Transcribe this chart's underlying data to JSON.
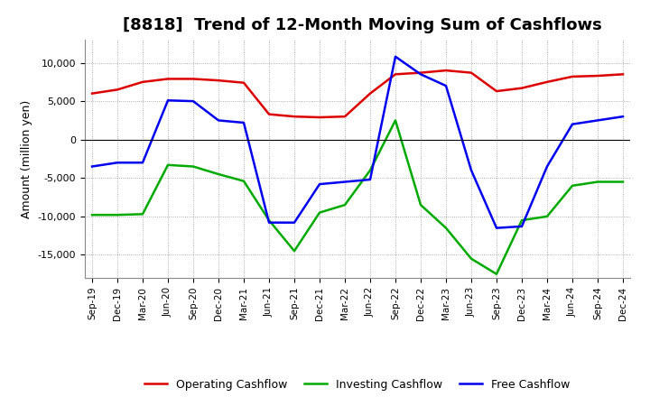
{
  "title": "[8818]  Trend of 12-Month Moving Sum of Cashflows",
  "ylabel": "Amount (million yen)",
  "x_labels": [
    "Sep-19",
    "Dec-19",
    "Mar-20",
    "Jun-20",
    "Sep-20",
    "Dec-20",
    "Mar-21",
    "Jun-21",
    "Sep-21",
    "Dec-21",
    "Mar-22",
    "Jun-22",
    "Sep-22",
    "Dec-22",
    "Mar-23",
    "Jun-23",
    "Sep-23",
    "Dec-23",
    "Mar-24",
    "Jun-24",
    "Sep-24",
    "Dec-24"
  ],
  "operating": [
    6000,
    6500,
    7500,
    7900,
    7900,
    7700,
    7400,
    3300,
    3000,
    2900,
    3000,
    6000,
    8500,
    8700,
    9000,
    8700,
    6300,
    6700,
    7500,
    8200,
    8300,
    8500
  ],
  "investing": [
    -9800,
    -9800,
    -9700,
    -3300,
    -3500,
    -4500,
    -5400,
    -10500,
    -14500,
    -9500,
    -8500,
    -4000,
    2500,
    -8500,
    -11500,
    -15500,
    -17500,
    -10500,
    -10000,
    -6000,
    -5500,
    -5500
  ],
  "free": [
    -3500,
    -3000,
    -3000,
    5100,
    5000,
    2500,
    2200,
    -10800,
    -10800,
    -5800,
    -5500,
    -5200,
    10800,
    8500,
    7000,
    -4000,
    -11500,
    -11300,
    -3500,
    2000,
    2500,
    3000
  ],
  "operating_color": "#dd0000",
  "investing_color": "#00aa00",
  "free_color": "#0000ee",
  "ylim": [
    -18000,
    13000
  ],
  "yticks": [
    -15000,
    -10000,
    -5000,
    0,
    5000,
    10000
  ],
  "background_color": "#ffffff",
  "grid_color": "#999999",
  "title_fontsize": 13,
  "legend_labels": [
    "Operating Cashflow",
    "Investing Cashflow",
    "Free Cashflow"
  ]
}
